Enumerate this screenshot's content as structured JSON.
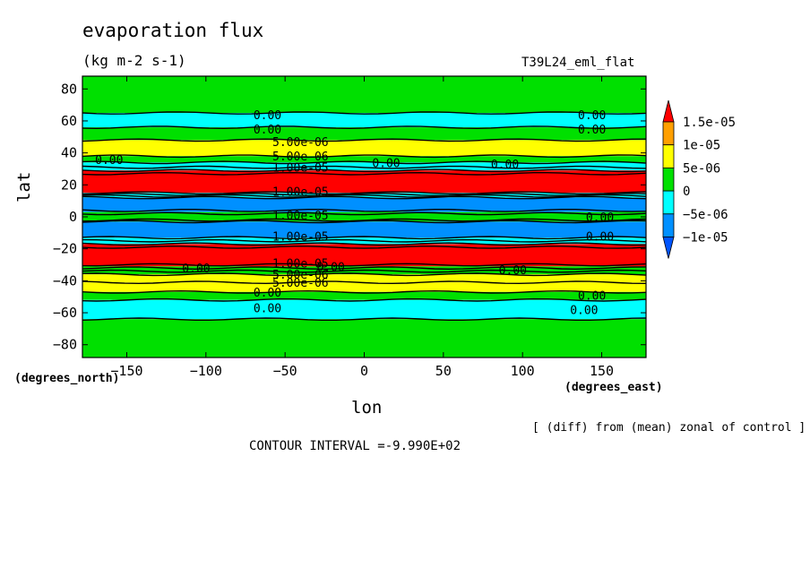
{
  "title": "evaporation flux",
  "units": "(kg m-2 s-1)",
  "run_label": "T39L24_eml_flat",
  "note": "[ (diff) from (mean) zonal of control ]",
  "contour_interval": "CONTOUR INTERVAL =-9.990E+02",
  "chart_data": {
    "type": "heatmap",
    "title": "evaporation flux",
    "xlabel": "lon",
    "ylabel": "lat",
    "x_unit": "(degrees_east)",
    "y_unit": "(degrees_north)",
    "xlim": [
      -178,
      178
    ],
    "ylim": [
      -88,
      88
    ],
    "x_ticks": [
      -150,
      -100,
      -50,
      0,
      50,
      100,
      150
    ],
    "x_tick_labels": [
      "−150",
      "−100",
      "−50",
      "0",
      "50",
      "100",
      "150"
    ],
    "y_ticks": [
      -80,
      -60,
      -40,
      -20,
      0,
      20,
      40,
      60,
      80
    ],
    "y_tick_labels": [
      "−80",
      "−60",
      "−40",
      "−20",
      "0",
      "20",
      "40",
      "60",
      "80"
    ],
    "colorbar": {
      "labels": [
        "1.5e-05",
        "1e-05",
        "5e-06",
        "0",
        "−5e-06",
        "−1e-05"
      ],
      "levels": [
        1.5e-05,
        1e-05,
        5e-06,
        0,
        -5e-06,
        -1e-05
      ],
      "colors": [
        "#ff0000",
        "#ff9f00",
        "#ffff00",
        "#00e000",
        "#00ffff",
        "#0090ff",
        "#0055ff"
      ]
    },
    "bands": [
      {
        "lat_top": 88,
        "lat_bottom": 65,
        "color": "#00e000"
      },
      {
        "lat_top": 65,
        "lat_bottom": 56,
        "color": "#00ffff"
      },
      {
        "lat_top": 56,
        "lat_bottom": 48,
        "color": "#00e000"
      },
      {
        "lat_top": 48,
        "lat_bottom": 44,
        "color": "#ffff00"
      },
      {
        "lat_top": 44,
        "lat_bottom": 38,
        "color": "#ffff00"
      },
      {
        "lat_top": 38,
        "lat_bottom": 34,
        "color": "#00e000"
      },
      {
        "lat_top": 34,
        "lat_bottom": 29,
        "color": "#00ffff"
      },
      {
        "lat_top": 29,
        "lat_bottom": 15,
        "color": "#ff0000"
      },
      {
        "lat_top": 15,
        "lat_bottom": 12,
        "color": "#00ffff"
      },
      {
        "lat_top": 12,
        "lat_bottom": 3,
        "color": "#0090ff"
      },
      {
        "lat_top": 3,
        "lat_bottom": -3,
        "color": "#00e000"
      },
      {
        "lat_top": -3,
        "lat_bottom": -13,
        "color": "#0090ff"
      },
      {
        "lat_top": -13,
        "lat_bottom": -17,
        "color": "#00ffff"
      },
      {
        "lat_top": -17,
        "lat_bottom": -31,
        "color": "#ff0000"
      },
      {
        "lat_top": -31,
        "lat_bottom": -36,
        "color": "#00e000"
      },
      {
        "lat_top": -36,
        "lat_bottom": -41,
        "color": "#ffff00"
      },
      {
        "lat_top": -41,
        "lat_bottom": -47,
        "color": "#ffff00"
      },
      {
        "lat_top": -47,
        "lat_bottom": -52,
        "color": "#00e000"
      },
      {
        "lat_top": -52,
        "lat_bottom": -64,
        "color": "#00ffff"
      },
      {
        "lat_top": -64,
        "lat_bottom": -88,
        "color": "#00e000"
      }
    ],
    "contour_lines": [
      65,
      56,
      48,
      38,
      34,
      31,
      29,
      27,
      15,
      14,
      13,
      12,
      4,
      2,
      -2,
      -3,
      -13,
      -15,
      -17,
      -19,
      -30,
      -32,
      -34,
      -36,
      -41,
      -47,
      -52,
      -64
    ],
    "contour_labels": [
      {
        "text": "0.00",
        "lon": -70,
        "lat": 64
      },
      {
        "text": "0.00",
        "lon": -70,
        "lat": 55
      },
      {
        "text": "5.00e-06",
        "lon": -58,
        "lat": 47
      },
      {
        "text": "5.00e-06",
        "lon": -58,
        "lat": 38
      },
      {
        "text": "1.00e-05",
        "lon": -58,
        "lat": 31
      },
      {
        "text": "0.00",
        "lon": -170,
        "lat": 36
      },
      {
        "text": "0.00",
        "lon": 5,
        "lat": 34
      },
      {
        "text": "0.00",
        "lon": 80,
        "lat": 33
      },
      {
        "text": "0.00",
        "lon": 135,
        "lat": 64
      },
      {
        "text": "0.00",
        "lon": 135,
        "lat": 55
      },
      {
        "text": "1.00e-05",
        "lon": -58,
        "lat": 16
      },
      {
        "text": "1.00e-05",
        "lon": -58,
        "lat": 1
      },
      {
        "text": "0.00",
        "lon": 140,
        "lat": 0
      },
      {
        "text": "1.00e-05",
        "lon": -58,
        "lat": -12
      },
      {
        "text": "0.00",
        "lon": 140,
        "lat": -12
      },
      {
        "text": "1.00e-05",
        "lon": -58,
        "lat": -29
      },
      {
        "text": "0.00",
        "lon": -115,
        "lat": -32
      },
      {
        "text": "0.00",
        "lon": -30,
        "lat": -31
      },
      {
        "text": "0.00",
        "lon": 85,
        "lat": -33
      },
      {
        "text": "5.00e-06",
        "lon": -58,
        "lat": -36
      },
      {
        "text": "5.00e-06",
        "lon": -58,
        "lat": -41
      },
      {
        "text": "0.00",
        "lon": -70,
        "lat": -47
      },
      {
        "text": "0.00",
        "lon": 135,
        "lat": -49
      },
      {
        "text": "0.00",
        "lon": -70,
        "lat": -57
      },
      {
        "text": "0.00",
        "lon": 130,
        "lat": -58
      }
    ]
  }
}
